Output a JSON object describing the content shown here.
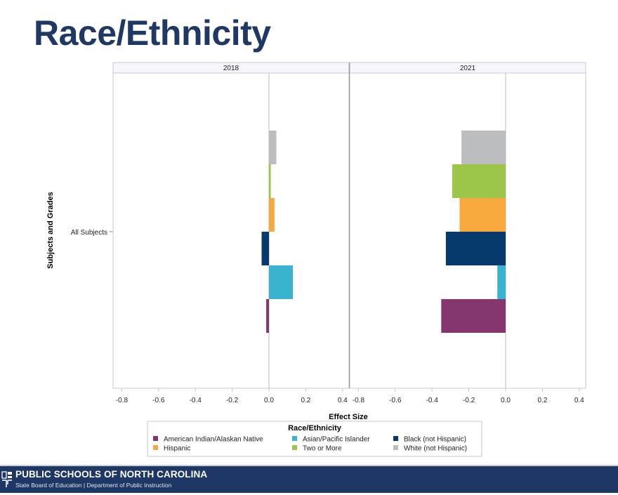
{
  "slide": {
    "title": "Race/Ethnicity"
  },
  "footer": {
    "organization": "PUBLIC SCHOOLS OF NORTH CAROLINA",
    "subtitle": "State Board of Education | Department of Public Instruction",
    "logo_icon": "nc-dpi-logo-icon"
  },
  "chart_data": {
    "type": "bar",
    "orientation": "horizontal",
    "title": "",
    "xlabel": "Effect Size",
    "ylabel": "Subjects and Grades",
    "xlim": [
      -0.85,
      0.44
    ],
    "x_ticks": [
      "-0.8",
      "-0.6",
      "-0.4",
      "-0.2",
      "0.0",
      "0.2",
      "0.4"
    ],
    "x_tick_values": [
      -0.8,
      -0.6,
      -0.4,
      -0.2,
      0.0,
      0.2,
      0.4
    ],
    "categories": [
      "All Subjects"
    ],
    "panels": [
      "2018",
      "2021"
    ],
    "legend": {
      "title": "Race/Ethnicity",
      "placement": "bottom",
      "items": [
        {
          "name": "American Indian/Alaskan Native",
          "color": "#85366f"
        },
        {
          "name": "Asian/Pacific Islander",
          "color": "#3ab3d1"
        },
        {
          "name": "Black (not Hispanic)",
          "color": "#073a6c"
        },
        {
          "name": "Hispanic",
          "color": "#f7a93d"
        },
        {
          "name": "Two or More",
          "color": "#9bc649"
        },
        {
          "name": "White (not Hispanic)",
          "color": "#bcbdbf"
        }
      ]
    },
    "bar_order_top_to_bottom": [
      "White (not Hispanic)",
      "Two or More",
      "Hispanic",
      "Black (not Hispanic)",
      "Asian/Pacific Islander",
      "American Indian/Alaskan Native"
    ],
    "series": [
      {
        "name": "American Indian/Alaskan Native",
        "color": "#85366f",
        "values": {
          "2018": -0.015,
          "2021": -0.35
        }
      },
      {
        "name": "Asian/Pacific Islander",
        "color": "#3ab3d1",
        "values": {
          "2018": 0.13,
          "2021": -0.045
        }
      },
      {
        "name": "Black (not Hispanic)",
        "color": "#073a6c",
        "values": {
          "2018": -0.04,
          "2021": -0.325
        }
      },
      {
        "name": "Hispanic",
        "color": "#f7a93d",
        "values": {
          "2018": 0.03,
          "2021": -0.25
        }
      },
      {
        "name": "Two or More",
        "color": "#9bc649",
        "values": {
          "2018": 0.01,
          "2021": -0.29
        }
      },
      {
        "name": "White (not Hispanic)",
        "color": "#bcbdbf",
        "values": {
          "2018": 0.04,
          "2021": -0.24
        }
      }
    ],
    "grid": false
  }
}
